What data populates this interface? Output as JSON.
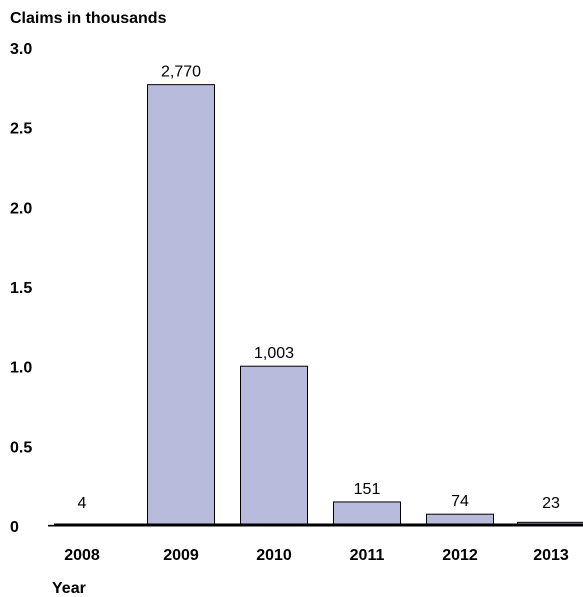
{
  "chart_data": {
    "type": "bar",
    "title": "Claims in thousands",
    "xlabel": "Year",
    "ylabel": "",
    "categories": [
      "2008",
      "2009",
      "2010",
      "2011",
      "2012",
      "2013"
    ],
    "values": [
      0.004,
      2.77,
      1.003,
      0.151,
      0.074,
      0.023
    ],
    "data_labels": [
      "4",
      "2,770",
      "1,003",
      "151",
      "74",
      "23"
    ],
    "ylim": [
      0,
      3.0
    ],
    "yticks": [
      0,
      0.5,
      1.0,
      1.5,
      2.0,
      2.5,
      3.0
    ],
    "ytick_labels": [
      "0",
      "0.5",
      "1.0",
      "1.5",
      "2.0",
      "2.5",
      "3.0"
    ],
    "grid": false,
    "bar_color": "#b8bbdc"
  }
}
